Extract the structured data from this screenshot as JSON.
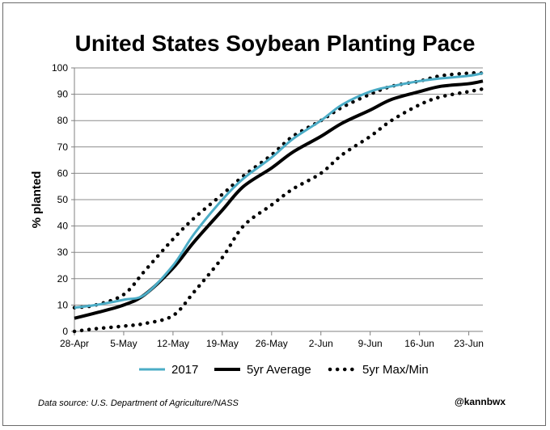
{
  "chart_data": {
    "type": "line",
    "title": "United States Soybean Planting Pace",
    "ylabel": "% planted",
    "xlabel": "",
    "ylim": [
      0,
      100
    ],
    "yticks": [
      0,
      10,
      20,
      30,
      40,
      50,
      60,
      70,
      80,
      90,
      100
    ],
    "x_tick_labels": [
      "28-Apr",
      "5-May",
      "12-May",
      "19-May",
      "26-May",
      "2-Jun",
      "9-Jun",
      "16-Jun",
      "23-Jun"
    ],
    "grid": "horizontal",
    "legend_position": "bottom",
    "colors": {
      "s2017": "#4bacc6",
      "avg": "#000000",
      "maxmin": "#000000"
    },
    "series": [
      {
        "name": "2017",
        "style": "solid-light",
        "x": [
          "28-Apr",
          "1-May",
          "5-May",
          "8-May",
          "12-May",
          "15-May",
          "19-May",
          "22-May",
          "26-May",
          "29-May",
          "2-Jun",
          "5-Jun",
          "9-Jun",
          "12-Jun",
          "16-Jun",
          "19-Jun",
          "23-Jun",
          "25-Jun"
        ],
        "values": [
          9,
          10,
          12,
          14,
          25,
          37,
          50,
          58,
          66,
          73,
          80,
          86,
          91,
          93,
          95,
          96,
          97,
          98
        ]
      },
      {
        "name": "5yr Average",
        "style": "solid-thick",
        "x": [
          "28-Apr",
          "1-May",
          "5-May",
          "8-May",
          "12-May",
          "15-May",
          "19-May",
          "22-May",
          "26-May",
          "29-May",
          "2-Jun",
          "5-Jun",
          "9-Jun",
          "12-Jun",
          "16-Jun",
          "19-Jun",
          "23-Jun",
          "25-Jun"
        ],
        "values": [
          5,
          7,
          10,
          14,
          24,
          34,
          46,
          55,
          62,
          68,
          74,
          79,
          84,
          88,
          91,
          93,
          94,
          95
        ]
      },
      {
        "name": "5yr Max/Min",
        "style": "dotted",
        "x": [
          "28-Apr",
          "1-May",
          "5-May",
          "8-May",
          "12-May",
          "15-May",
          "19-May",
          "22-May",
          "26-May",
          "29-May",
          "2-Jun",
          "5-Jun",
          "9-Jun",
          "12-Jun",
          "16-Jun",
          "19-Jun",
          "23-Jun",
          "25-Jun"
        ],
        "values": [
          9,
          10,
          14,
          23,
          35,
          43,
          52,
          59,
          67,
          74,
          80,
          85,
          90,
          93,
          95,
          97,
          98,
          98
        ]
      },
      {
        "name": "",
        "style": "dotted",
        "x": [
          "28-Apr",
          "1-May",
          "5-May",
          "8-May",
          "12-May",
          "15-May",
          "19-May",
          "22-May",
          "26-May",
          "29-May",
          "2-Jun",
          "5-Jun",
          "9-Jun",
          "12-Jun",
          "16-Jun",
          "19-Jun",
          "23-Jun",
          "25-Jun"
        ],
        "values": [
          0,
          1,
          2,
          3,
          6,
          15,
          28,
          40,
          48,
          54,
          60,
          67,
          74,
          80,
          86,
          89,
          91,
          92
        ]
      }
    ]
  },
  "footer": {
    "source": "Data source: U.S. Department of Agriculture/NASS",
    "credit": "@kannbwx"
  }
}
